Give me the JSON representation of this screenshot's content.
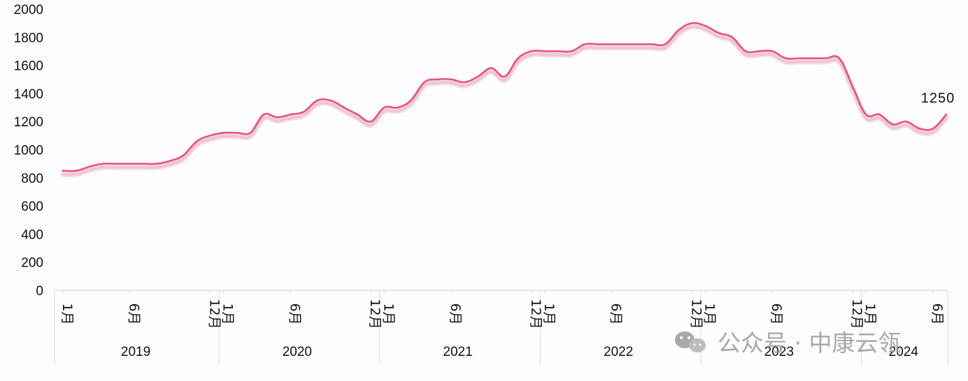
{
  "chart_data": {
    "type": "line",
    "title": "",
    "xlabel": "",
    "ylabel": "",
    "ylim": [
      0,
      2000
    ],
    "yticks": [
      0,
      200,
      400,
      600,
      800,
      1000,
      1200,
      1400,
      1600,
      1800,
      2000
    ],
    "grid": false,
    "line_color": "#ec4f78",
    "x_tick_labels": [
      {
        "month_index": 0,
        "text": "1月"
      },
      {
        "month_index": 5,
        "text": "6月"
      },
      {
        "month_index": 11,
        "text": "12月"
      },
      {
        "month_index": 12,
        "text": "1月"
      },
      {
        "month_index": 17,
        "text": "6月"
      },
      {
        "month_index": 23,
        "text": "12月"
      },
      {
        "month_index": 24,
        "text": "1月"
      },
      {
        "month_index": 29,
        "text": "6月"
      },
      {
        "month_index": 35,
        "text": "12月"
      },
      {
        "month_index": 36,
        "text": "1月"
      },
      {
        "month_index": 41,
        "text": "6月"
      },
      {
        "month_index": 47,
        "text": "12月"
      },
      {
        "month_index": 48,
        "text": "1月"
      },
      {
        "month_index": 53,
        "text": "6月"
      },
      {
        "month_index": 59,
        "text": "12月"
      },
      {
        "month_index": 60,
        "text": "1月"
      },
      {
        "month_index": 65,
        "text": "6月"
      }
    ],
    "years": [
      {
        "label": "2019",
        "start": 0,
        "end": 12
      },
      {
        "label": "2020",
        "start": 12,
        "end": 24
      },
      {
        "label": "2021",
        "start": 24,
        "end": 36
      },
      {
        "label": "2022",
        "start": 36,
        "end": 48
      },
      {
        "label": "2023",
        "start": 48,
        "end": 60
      },
      {
        "label": "2024",
        "start": 60,
        "end": 66
      }
    ],
    "series": [
      {
        "values": [
          850,
          850,
          880,
          900,
          900,
          900,
          900,
          900,
          920,
          960,
          1060,
          1100,
          1120,
          1120,
          1120,
          1250,
          1230,
          1250,
          1270,
          1350,
          1350,
          1300,
          1250,
          1200,
          1300,
          1300,
          1350,
          1480,
          1500,
          1500,
          1480,
          1520,
          1580,
          1520,
          1650,
          1700,
          1700,
          1700,
          1700,
          1750,
          1750,
          1750,
          1750,
          1750,
          1750,
          1750,
          1850,
          1900,
          1880,
          1830,
          1800,
          1700,
          1700,
          1700,
          1650,
          1650,
          1650,
          1650,
          1650,
          1450,
          1250,
          1250,
          1180,
          1200,
          1150,
          1150,
          1250
        ]
      }
    ],
    "annotations": [
      {
        "month_index": 66,
        "text": "1250"
      }
    ]
  },
  "watermark": {
    "text": "公众号 · 中康云瓴",
    "icon": "wechat-icon"
  }
}
